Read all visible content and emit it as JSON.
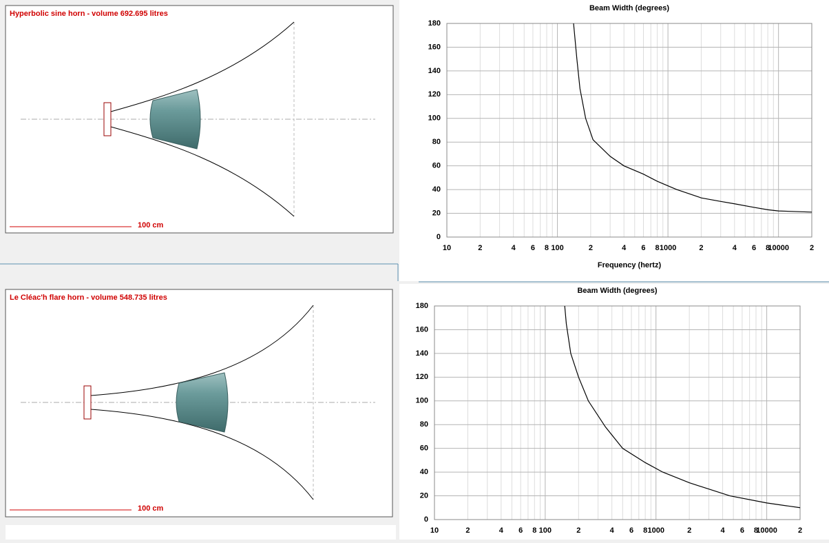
{
  "horn_panels": [
    {
      "title": "Hyperbolic sine horn - volume 692.695 litres",
      "scale_label": "100 cm"
    },
    {
      "title": "Le Cléac'h flare horn - volume 548.735 litres",
      "scale_label": "100 cm"
    }
  ],
  "chart_data": [
    {
      "type": "line",
      "title": "Beam Width (degrees)",
      "x_label": "Frequency (hertz)",
      "log_x": true,
      "grid": true,
      "xlim": [
        10,
        20000
      ],
      "ylim": [
        0,
        180
      ],
      "yticks": [
        0,
        20,
        40,
        60,
        80,
        100,
        120,
        140,
        160,
        180
      ],
      "xticks": [
        10,
        {
          "value": 20,
          "label": "2"
        },
        {
          "value": 40,
          "label": "4"
        },
        {
          "value": 60,
          "label": "6"
        },
        {
          "value": 80,
          "label": "8"
        },
        100,
        {
          "value": 200,
          "label": "2"
        },
        {
          "value": 400,
          "label": "4"
        },
        {
          "value": 600,
          "label": "6"
        },
        {
          "value": 800,
          "label": "8"
        },
        1000,
        {
          "value": 2000,
          "label": "2"
        },
        {
          "value": 4000,
          "label": "4"
        },
        {
          "value": 6000,
          "label": "6"
        },
        {
          "value": 8000,
          "label": "8"
        },
        10000,
        {
          "value": 20000,
          "label": "2"
        }
      ],
      "x_minor_ticks": [
        30,
        50,
        70,
        90,
        300,
        500,
        700,
        900,
        3000,
        5000,
        7000,
        9000
      ],
      "series": [
        {
          "color": "#000000",
          "x": [
            140,
            150,
            160,
            180,
            210,
            300,
            400,
            600,
            800,
            1200,
            2000,
            3000,
            4000,
            6000,
            8000,
            10000,
            20000
          ],
          "values": [
            180,
            150,
            125,
            100,
            82,
            68,
            60,
            53,
            47,
            40,
            33,
            30,
            28,
            25,
            23,
            22,
            21
          ]
        }
      ]
    },
    {
      "type": "line",
      "title": "Beam Width (degrees)",
      "log_x": true,
      "grid": true,
      "xlim": [
        10,
        20000
      ],
      "ylim": [
        0,
        180
      ],
      "yticks": [
        0,
        20,
        40,
        60,
        80,
        100,
        120,
        140,
        160,
        180
      ],
      "xticks": [
        10,
        {
          "value": 20,
          "label": "2"
        },
        {
          "value": 40,
          "label": "4"
        },
        {
          "value": 60,
          "label": "6"
        },
        {
          "value": 80,
          "label": "8"
        },
        100,
        {
          "value": 200,
          "label": "2"
        },
        {
          "value": 400,
          "label": "4"
        },
        {
          "value": 600,
          "label": "6"
        },
        {
          "value": 800,
          "label": "8"
        },
        1000,
        {
          "value": 2000,
          "label": "2"
        },
        {
          "value": 4000,
          "label": "4"
        },
        {
          "value": 6000,
          "label": "6"
        },
        {
          "value": 8000,
          "label": "8"
        },
        10000,
        {
          "value": 20000,
          "label": "2"
        }
      ],
      "x_minor_ticks": [
        30,
        50,
        70,
        90,
        300,
        500,
        700,
        900,
        3000,
        5000,
        7000,
        9000
      ],
      "series": [
        {
          "color": "#000000",
          "x": [
            150,
            155,
            170,
            200,
            245,
            350,
            500,
            800,
            1150,
            2000,
            4650,
            10000,
            20000
          ],
          "values": [
            180,
            165,
            140,
            120,
            100,
            78,
            60,
            48,
            40,
            31,
            20,
            14,
            10
          ]
        }
      ]
    }
  ]
}
